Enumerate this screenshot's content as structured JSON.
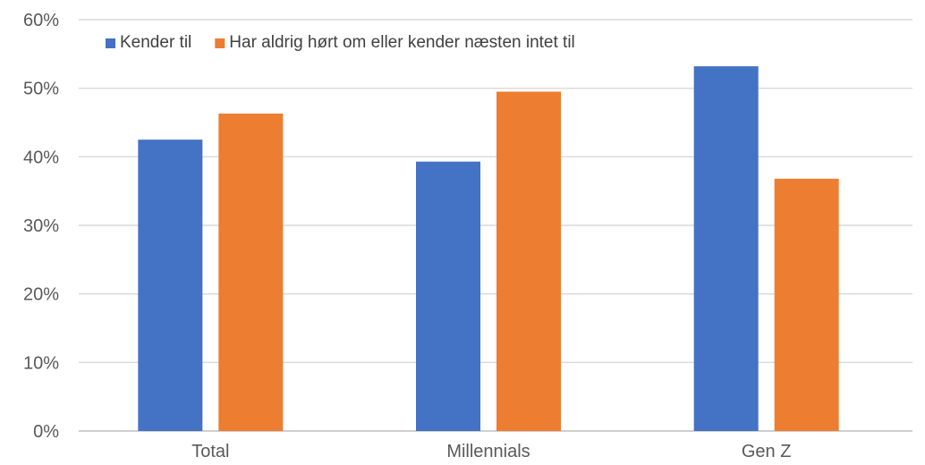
{
  "chart_data": {
    "type": "bar",
    "categories": [
      "Total",
      "Millennials",
      "Gen Z"
    ],
    "series": [
      {
        "name": "Kender til",
        "values": [
          42.5,
          39.3,
          53.2
        ],
        "color": "#4472c4"
      },
      {
        "name": "Har aldrig hørt om eller kender næsten intet til",
        "values": [
          46.3,
          49.5,
          36.8
        ],
        "color": "#ed7d31"
      }
    ],
    "ylim": [
      0,
      60
    ],
    "yticks": [
      0,
      10,
      20,
      30,
      40,
      50,
      60
    ],
    "ytick_format": "%",
    "grid": true,
    "legend_position": "top-left"
  }
}
